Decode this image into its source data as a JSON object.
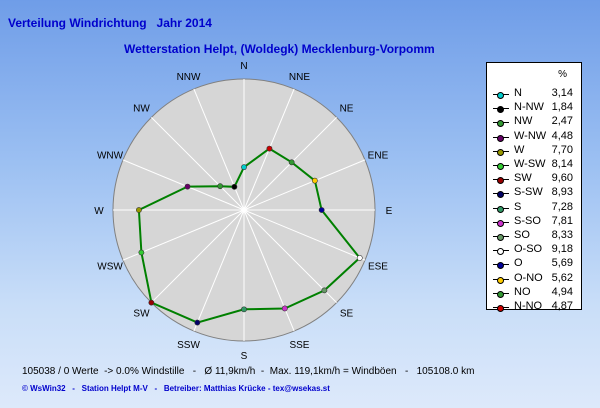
{
  "header": {
    "title": "Verteilung Windrichtung   Jahr 2014",
    "subtitle": "Wetterstation Helpt, (Woldegk) Mecklenburg-Vorpomm"
  },
  "legend": {
    "unit": "%",
    "items": [
      {
        "name": "N",
        "value": "3,14",
        "color": "#00cccc"
      },
      {
        "name": "N-NW",
        "value": "1,84",
        "color": "#000000"
      },
      {
        "name": "NW",
        "value": "2,47",
        "color": "#339933"
      },
      {
        "name": "W-NW",
        "value": "4,48",
        "color": "#660066"
      },
      {
        "name": "W",
        "value": "7,70",
        "color": "#999900"
      },
      {
        "name": "W-SW",
        "value": "8,14",
        "color": "#33cc33"
      },
      {
        "name": "SW",
        "value": "9,60",
        "color": "#990000"
      },
      {
        "name": "S-SW",
        "value": "8,93",
        "color": "#000066"
      },
      {
        "name": "S",
        "value": "7,28",
        "color": "#339966"
      },
      {
        "name": "S-SO",
        "value": "7,81",
        "color": "#cc33cc"
      },
      {
        "name": "SO",
        "value": "8,33",
        "color": "#669966"
      },
      {
        "name": "O-SO",
        "value": "9,18",
        "color": "#ffffff"
      },
      {
        "name": "O",
        "value": "5,69",
        "color": "#000099"
      },
      {
        "name": "O-NO",
        "value": "5,62",
        "color": "#ffcc00"
      },
      {
        "name": "NO",
        "value": "4,94",
        "color": "#339933"
      },
      {
        "name": "N-NO",
        "value": "4,87",
        "color": "#cc0000"
      }
    ]
  },
  "stats": "105038 / 0 Werte  -> 0.0% Windstille   -   Ø 11,9km/h  -  Max. 119,1km/h = Windböen   -   105108.0 km",
  "footer": "© WsWin32   -   Station Helpt M-V   -   Betreiber: Matthias Krücke - tex@wsekas.st",
  "chart_data": {
    "type": "radar",
    "title": "Verteilung Windrichtung   Jahr 2014",
    "subtitle": "Wetterstation Helpt, (Woldegk) Mecklenburg-Vorpomm",
    "unit": "%",
    "directions": [
      "N",
      "NNE",
      "NE",
      "ENE",
      "E",
      "ESE",
      "SE",
      "SSE",
      "S",
      "SSW",
      "SW",
      "WSW",
      "W",
      "WNW",
      "NW",
      "NNW"
    ],
    "values": [
      3.14,
      4.87,
      4.94,
      5.62,
      5.69,
      9.18,
      8.33,
      7.81,
      7.28,
      8.93,
      9.6,
      8.14,
      7.7,
      4.48,
      2.47,
      1.84
    ],
    "point_colors": [
      "#00cccc",
      "#cc0000",
      "#339933",
      "#ffcc00",
      "#000099",
      "#ffffff",
      "#669966",
      "#cc33cc",
      "#339966",
      "#000066",
      "#990000",
      "#33cc33",
      "#999900",
      "#660066",
      "#339933",
      "#000000"
    ],
    "rmax": 9.6,
    "line_color": "#008000",
    "grid": "spokes",
    "legend_position": "right"
  }
}
